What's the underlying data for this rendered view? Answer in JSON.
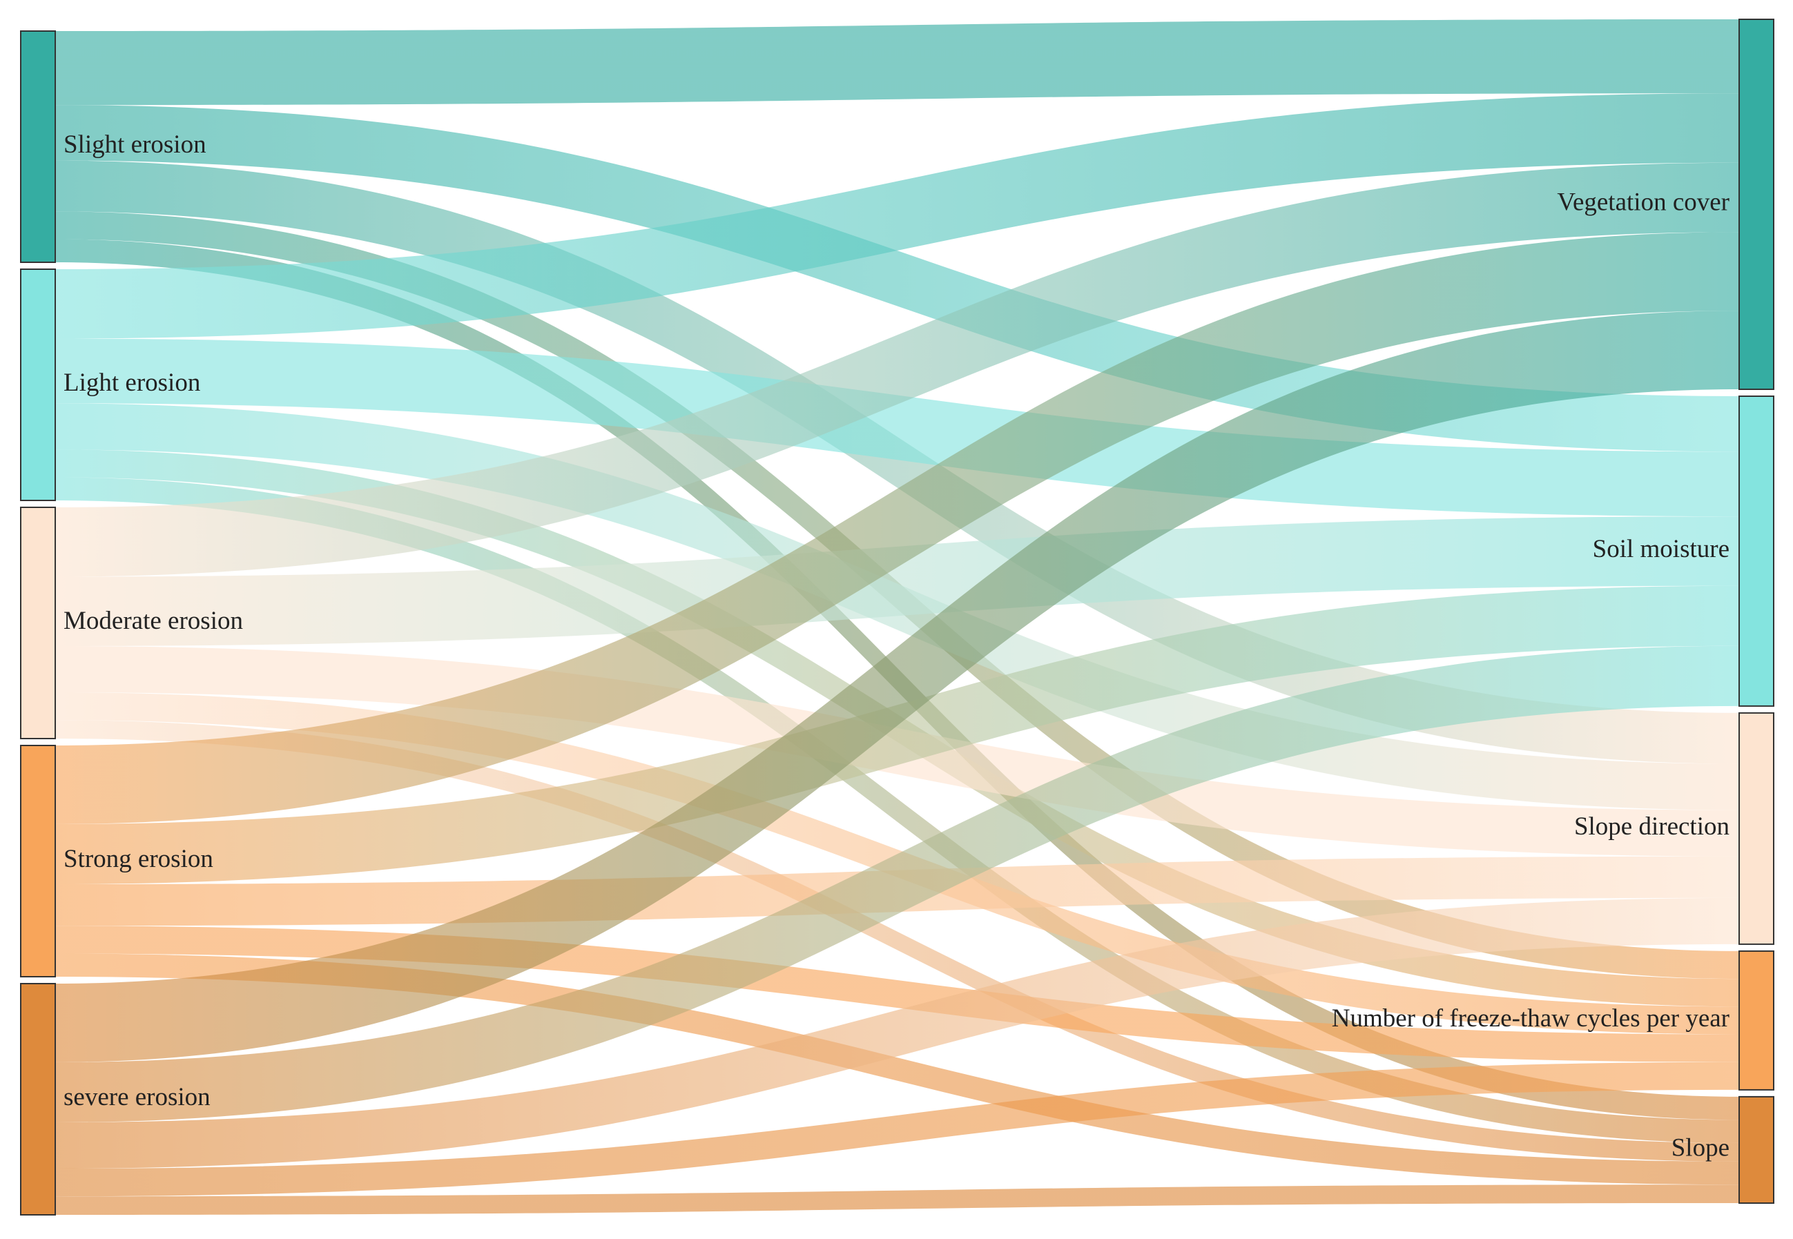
{
  "chart_data": {
    "type": "sankey",
    "nodes": [
      {
        "name": "Slight erosion",
        "color": "#35ada2"
      },
      {
        "name": "Light erosion",
        "color": "#84e4df"
      },
      {
        "name": "Moderate erosion",
        "color": "#fde4d0"
      },
      {
        "name": "Strong erosion",
        "color": "#f8a55a"
      },
      {
        "name": "severe erosion",
        "color": "#de8a3c"
      },
      {
        "name": "Vegetation cover",
        "color": "#35ada2"
      },
      {
        "name": "Soil moisture",
        "color": "#84e4df"
      },
      {
        "name": "Slope direction",
        "color": "#fde4d0"
      },
      {
        "name": "Number of freeze-thaw cycles per year",
        "color": "#f8a55a"
      },
      {
        "name": "Slope",
        "color": "#de8a3c"
      }
    ],
    "links": [
      {
        "source": "Slight erosion",
        "target": "Vegetation cover",
        "value": 32
      },
      {
        "source": "Slight erosion",
        "target": "Soil moisture",
        "value": 24
      },
      {
        "source": "Slight erosion",
        "target": "Slope direction",
        "value": 22
      },
      {
        "source": "Slight erosion",
        "target": "Number of freeze-thaw cycles per year",
        "value": 12
      },
      {
        "source": "Slight erosion",
        "target": "Slope",
        "value": 10
      },
      {
        "source": "Light erosion",
        "target": "Vegetation cover",
        "value": 30
      },
      {
        "source": "Light erosion",
        "target": "Soil moisture",
        "value": 28
      },
      {
        "source": "Light erosion",
        "target": "Slope direction",
        "value": 20
      },
      {
        "source": "Light erosion",
        "target": "Number of freeze-thaw cycles per year",
        "value": 12
      },
      {
        "source": "Light erosion",
        "target": "Slope",
        "value": 10
      },
      {
        "source": "Moderate erosion",
        "target": "Vegetation cover",
        "value": 30
      },
      {
        "source": "Moderate erosion",
        "target": "Soil moisture",
        "value": 30
      },
      {
        "source": "Moderate erosion",
        "target": "Slope direction",
        "value": 20
      },
      {
        "source": "Moderate erosion",
        "target": "Number of freeze-thaw cycles per year",
        "value": 12
      },
      {
        "source": "Moderate erosion",
        "target": "Slope",
        "value": 8
      },
      {
        "source": "Strong erosion",
        "target": "Vegetation cover",
        "value": 34
      },
      {
        "source": "Strong erosion",
        "target": "Soil moisture",
        "value": 26
      },
      {
        "source": "Strong erosion",
        "target": "Slope direction",
        "value": 18
      },
      {
        "source": "Strong erosion",
        "target": "Number of freeze-thaw cycles per year",
        "value": 12
      },
      {
        "source": "Strong erosion",
        "target": "Slope",
        "value": 10
      },
      {
        "source": "severe erosion",
        "target": "Vegetation cover",
        "value": 34
      },
      {
        "source": "severe erosion",
        "target": "Soil moisture",
        "value": 26
      },
      {
        "source": "severe erosion",
        "target": "Slope direction",
        "value": 20
      },
      {
        "source": "severe erosion",
        "target": "Number of freeze-thaw cycles per year",
        "value": 12
      },
      {
        "source": "severe erosion",
        "target": "Slope",
        "value": 8
      }
    ]
  }
}
